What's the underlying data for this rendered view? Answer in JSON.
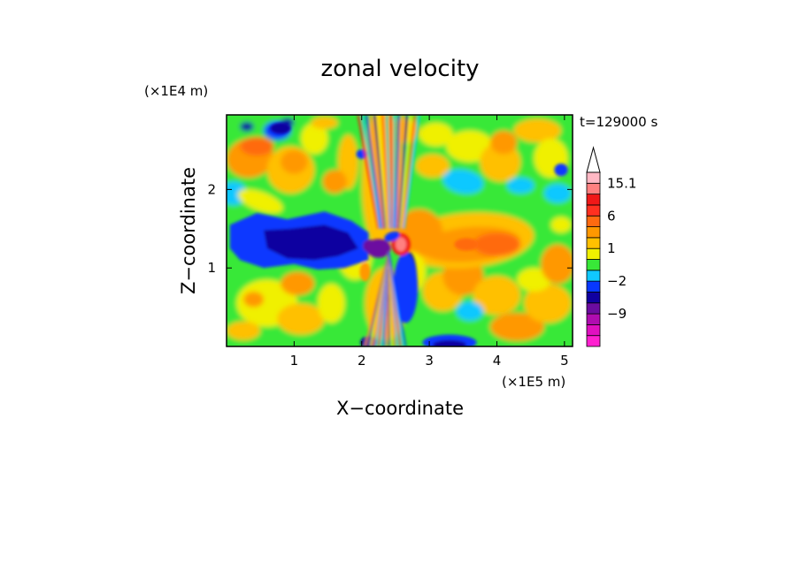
{
  "chart_data": {
    "type": "heatmap",
    "title": "zonal velocity",
    "xlabel": "X−coordinate",
    "ylabel": "Z−coordinate",
    "x_scale_label": "(×1E5 m)",
    "y_scale_label": "(×1E4 m)",
    "time_label": "t=129000 s",
    "xlim": [
      0,
      5.12
    ],
    "ylim": [
      0,
      2.95
    ],
    "x_ticks": [
      1,
      2,
      3,
      4,
      5
    ],
    "y_ticks": [
      1,
      2
    ],
    "colorbar": {
      "extend_max": true,
      "levels_bottom_to_top": [
        {
          "color": "#ff20d0"
        },
        {
          "color": "#e010c0"
        },
        {
          "color": "#b00cb0"
        },
        {
          "color": "#6c0ca0"
        },
        {
          "color": "#1000a0"
        },
        {
          "color": "#0838ff"
        },
        {
          "color": "#10c8ff"
        },
        {
          "color": "#38e838"
        },
        {
          "color": "#f0f000"
        },
        {
          "color": "#ffc000"
        },
        {
          "color": "#ff9800"
        },
        {
          "color": "#ff6a10"
        },
        {
          "color": "#ff3020"
        },
        {
          "color": "#f01818"
        },
        {
          "color": "#ff8080"
        },
        {
          "color": "#ffb8c4"
        }
      ],
      "extend_color": "#ffffff",
      "labels": [
        {
          "text": "15.1",
          "level": 15
        },
        {
          "text": "6",
          "level": 12
        },
        {
          "text": "1",
          "level": 9
        },
        {
          "text": "−2",
          "level": 6
        },
        {
          "text": "−9",
          "level": 3
        }
      ]
    },
    "palette": {
      "magenta": "#ff20d0",
      "purple": "#6c0ca0",
      "navy": "#1000a0",
      "blue": "#0838ff",
      "cyan": "#10c8ff",
      "green": "#38e838",
      "yellow": "#f0f000",
      "gold": "#ffc000",
      "orange": "#ff9800",
      "dark-orange": "#ff6a10",
      "red": "#f01818",
      "pink": "#ff8080",
      "light-pink": "#ffb8c4"
    }
  }
}
